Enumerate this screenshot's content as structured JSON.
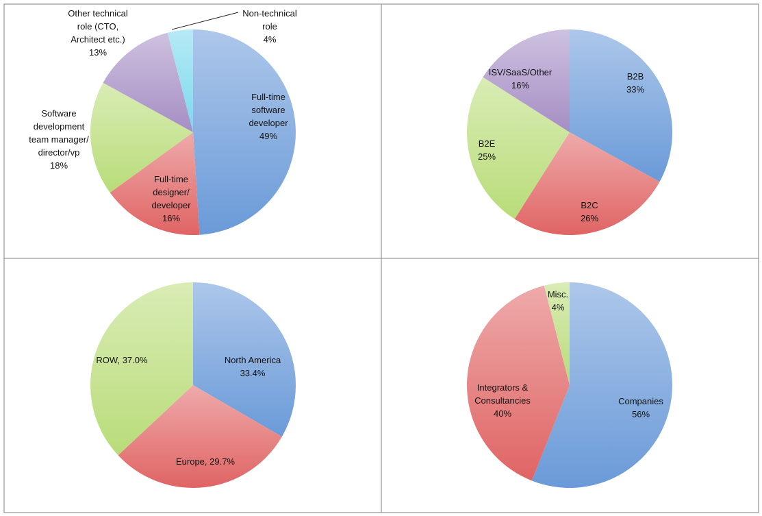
{
  "chart_data": [
    {
      "type": "pie",
      "slices": [
        {
          "label_lines": [
            "Full-time",
            "software",
            "developer",
            "49%"
          ],
          "value": 49,
          "color": "#6a9ad8"
        },
        {
          "label_lines": [
            "Full-time",
            "designer/",
            "developer",
            "16%"
          ],
          "value": 16,
          "color": "#e06464"
        },
        {
          "label_lines": [
            "Software",
            "development",
            "team manager/",
            "director/vp",
            "18%"
          ],
          "value": 18,
          "color": "#b9dc79"
        },
        {
          "label_lines": [
            "Other technical",
            "role (CTO,",
            "Architect etc.)",
            "13%"
          ],
          "value": 13,
          "color": "#a58ec4"
        },
        {
          "label_lines": [
            "Non-technical",
            "role",
            "4%"
          ],
          "value": 4,
          "color": "#7ad8ec"
        }
      ]
    },
    {
      "type": "pie",
      "slices": [
        {
          "label_lines": [
            "B2B",
            "33%"
          ],
          "value": 33,
          "color": "#6a9ad8"
        },
        {
          "label_lines": [
            "B2C",
            "26%"
          ],
          "value": 26,
          "color": "#e06464"
        },
        {
          "label_lines": [
            "B2E",
            "25%"
          ],
          "value": 25,
          "color": "#b9dc79"
        },
        {
          "label_lines": [
            "ISV/SaaS/Other",
            "16%"
          ],
          "value": 16,
          "color": "#a58ec4"
        }
      ]
    },
    {
      "type": "pie",
      "slices": [
        {
          "label_lines": [
            "North America",
            "33.4%"
          ],
          "value": 33.4,
          "color": "#6a9ad8"
        },
        {
          "label_lines": [
            "Europe, 29.7%"
          ],
          "value": 29.7,
          "color": "#e06464"
        },
        {
          "label_lines": [
            "ROW, 37.0%"
          ],
          "value": 37.0,
          "color": "#b9dc79"
        }
      ]
    },
    {
      "type": "pie",
      "slices": [
        {
          "label_lines": [
            "Companies",
            "56%"
          ],
          "value": 56,
          "color": "#6a9ad8"
        },
        {
          "label_lines": [
            "Integrators &",
            "Consultancies",
            "40%"
          ],
          "value": 40,
          "color": "#e06464"
        },
        {
          "label_lines": [
            "Misc.",
            "4%"
          ],
          "value": 4,
          "color": "#b9dc79"
        }
      ]
    }
  ]
}
